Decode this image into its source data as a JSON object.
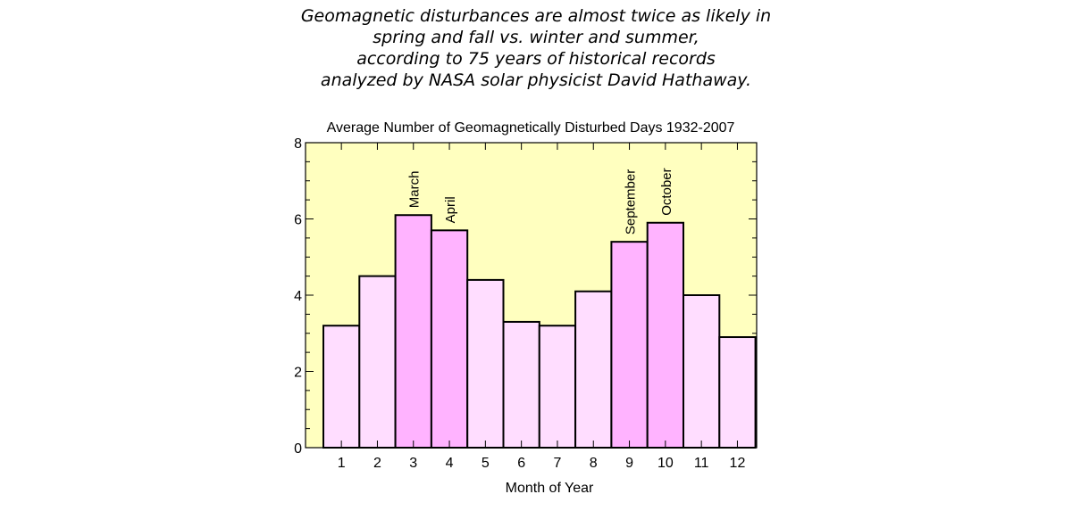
{
  "headline": [
    "Geomagnetic disturbances are almost twice as likely in",
    "spring and fall vs. winter and summer,",
    "according to 75 years of historical records",
    "analyzed by NASA solar physicist  David Hathaway."
  ],
  "colors": {
    "plot_background": "#FFFFBF",
    "bar_normal": "#FFDDFF",
    "bar_highlight": "#FFB3FF",
    "stroke": "#000000"
  },
  "chart_data": {
    "type": "bar",
    "title": "Average Number of Geomagnetically Disturbed Days 1932-2007",
    "xlabel": "Month of Year",
    "ylabel": "",
    "categories": [
      "1",
      "2",
      "3",
      "4",
      "5",
      "6",
      "7",
      "8",
      "9",
      "10",
      "11",
      "12"
    ],
    "values": [
      3.2,
      4.5,
      6.1,
      5.7,
      4.4,
      3.3,
      3.2,
      4.1,
      5.4,
      5.9,
      4.0,
      2.9
    ],
    "highlighted": [
      false,
      false,
      true,
      true,
      false,
      false,
      false,
      false,
      true,
      true,
      false,
      false
    ],
    "bar_labels": [
      "",
      "",
      "March",
      "April",
      "",
      "",
      "",
      "",
      "September",
      "October",
      "",
      ""
    ],
    "ylim": [
      0,
      8
    ],
    "yticks": [
      0,
      2,
      4,
      6,
      8
    ],
    "grid": false,
    "legend": "none"
  }
}
